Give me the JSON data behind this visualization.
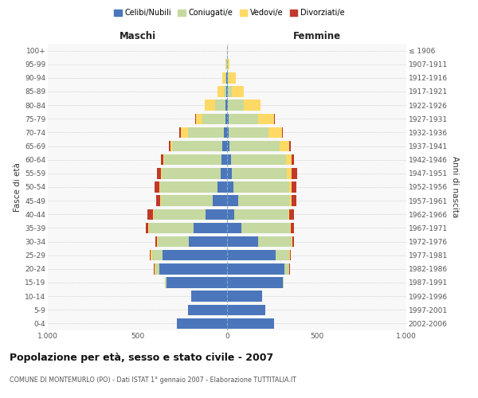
{
  "age_groups": [
    "0-4",
    "5-9",
    "10-14",
    "15-19",
    "20-24",
    "25-29",
    "30-34",
    "35-39",
    "40-44",
    "45-49",
    "50-54",
    "55-59",
    "60-64",
    "65-69",
    "70-74",
    "75-79",
    "80-84",
    "85-89",
    "90-94",
    "95-99",
    "100+"
  ],
  "birth_years": [
    "2002-2006",
    "1997-2001",
    "1992-1996",
    "1987-1991",
    "1982-1986",
    "1977-1981",
    "1972-1976",
    "1967-1971",
    "1962-1966",
    "1957-1961",
    "1952-1956",
    "1947-1951",
    "1942-1946",
    "1937-1941",
    "1932-1936",
    "1927-1931",
    "1922-1926",
    "1917-1921",
    "1912-1916",
    "1907-1911",
    "≤ 1906"
  ],
  "colors": {
    "celibi": "#4B76BB",
    "coniugati": "#C5D9A0",
    "vedovi": "#FFD966",
    "divorziati": "#C0392B"
  },
  "maschi": {
    "celibi": [
      280,
      220,
      200,
      340,
      380,
      360,
      215,
      185,
      120,
      80,
      55,
      35,
      30,
      25,
      20,
      10,
      8,
      5,
      3,
      2,
      2
    ],
    "coniugati": [
      0,
      0,
      0,
      5,
      20,
      60,
      170,
      250,
      290,
      290,
      320,
      330,
      320,
      280,
      200,
      130,
      60,
      15,
      5,
      2,
      0
    ],
    "vedovi": [
      0,
      0,
      0,
      0,
      5,
      5,
      5,
      5,
      5,
      5,
      5,
      5,
      5,
      10,
      40,
      35,
      55,
      35,
      20,
      5,
      0
    ],
    "divorziati": [
      0,
      0,
      0,
      0,
      2,
      5,
      10,
      15,
      30,
      20,
      25,
      20,
      12,
      10,
      5,
      2,
      2,
      0,
      0,
      0,
      0
    ]
  },
  "femmine": {
    "celibi": [
      260,
      215,
      195,
      310,
      320,
      270,
      175,
      80,
      40,
      60,
      35,
      25,
      20,
      15,
      10,
      8,
      5,
      5,
      3,
      2,
      2
    ],
    "coniugati": [
      0,
      0,
      0,
      5,
      25,
      75,
      185,
      270,
      300,
      290,
      310,
      310,
      310,
      280,
      220,
      165,
      90,
      20,
      5,
      2,
      0
    ],
    "vedovi": [
      0,
      0,
      0,
      0,
      2,
      5,
      5,
      5,
      5,
      10,
      15,
      25,
      30,
      50,
      75,
      90,
      90,
      70,
      40,
      8,
      2
    ],
    "divorziati": [
      0,
      0,
      0,
      0,
      2,
      5,
      10,
      20,
      30,
      25,
      25,
      30,
      15,
      10,
      5,
      2,
      2,
      0,
      0,
      0,
      0
    ]
  },
  "title": "Popolazione per età, sesso e stato civile - 2007",
  "subtitle": "COMUNE DI MONTEMURLO (PO) - Dati ISTAT 1° gennaio 2007 - Elaborazione TUTTITALIA.IT",
  "xlabel_left": "Maschi",
  "xlabel_right": "Femmine",
  "ylabel_left": "Fasce di età",
  "ylabel_right": "Anni di nascita",
  "xlim": 1000,
  "legend_labels": [
    "Celibi/Nubili",
    "Coniugati/e",
    "Vedovi/e",
    "Divorziati/e"
  ],
  "bg_color": "#FFFFFF",
  "grid_color": "#CCCCCC"
}
